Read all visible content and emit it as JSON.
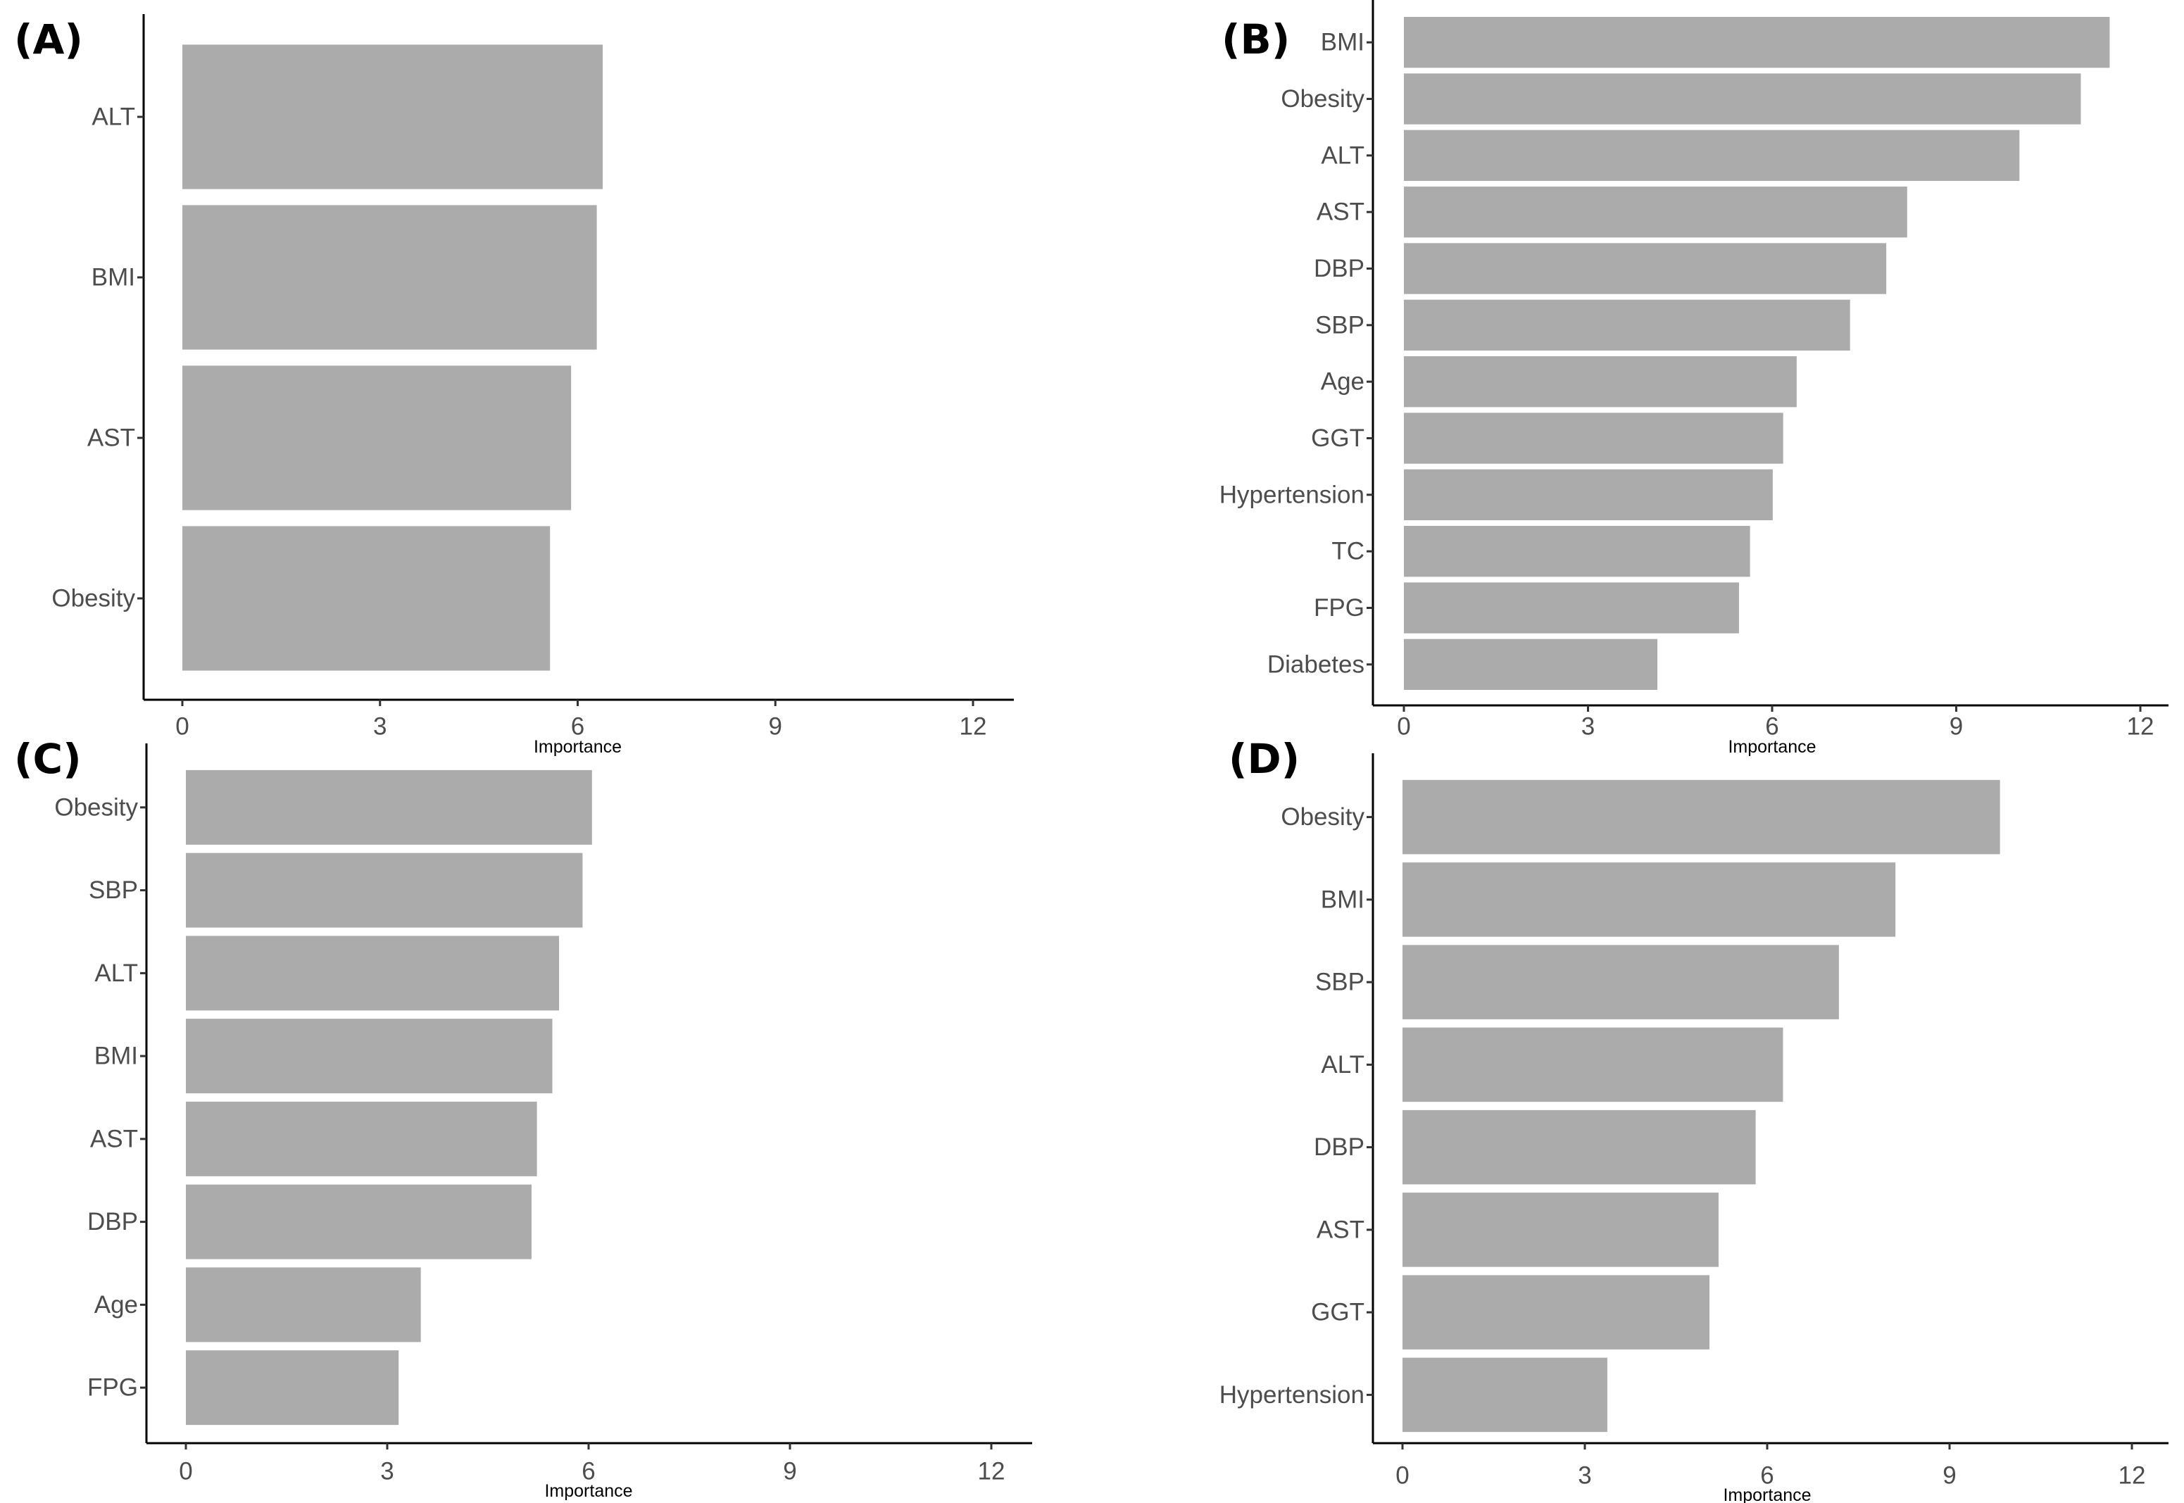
{
  "colors": {
    "bar": "#ababab",
    "axis": "#000000",
    "tick_text": "#4d4d4d"
  },
  "chart_data": [
    {
      "type": "bar",
      "orientation": "horizontal",
      "panel": "(A)",
      "title": "",
      "xlabel": "Importance",
      "ylabel": "",
      "xlim": [
        0,
        12
      ],
      "xticks": [
        "0",
        "3",
        "6",
        "9",
        "12"
      ],
      "grid": false,
      "categories": [
        "ALT",
        "BMI",
        "AST",
        "Obesity"
      ],
      "values": [
        6.38,
        6.29,
        5.9,
        5.58
      ]
    },
    {
      "type": "bar",
      "orientation": "horizontal",
      "panel": "(B)",
      "title": "",
      "xlabel": "Importance",
      "ylabel": "",
      "xlim": [
        0,
        12
      ],
      "xticks": [
        "0",
        "3",
        "6",
        "9",
        "12"
      ],
      "grid": false,
      "categories": [
        "BMI",
        "Obesity",
        "ALT",
        "AST",
        "DBP",
        "SBP",
        "Age",
        "GGT",
        "Hypertension",
        "TC",
        "FPG",
        "Diabetes"
      ],
      "values": [
        11.5,
        11.03,
        10.03,
        8.2,
        7.86,
        7.27,
        6.4,
        6.18,
        6.01,
        5.64,
        5.46,
        4.13
      ]
    },
    {
      "type": "bar",
      "orientation": "horizontal",
      "panel": "(C)",
      "title": "",
      "xlabel": "Importance",
      "ylabel": "",
      "xlim": [
        0,
        12
      ],
      "xticks": [
        "0",
        "3",
        "6",
        "9",
        "12"
      ],
      "grid": false,
      "categories": [
        "Obesity",
        "SBP",
        "ALT",
        "BMI",
        "AST",
        "DBP",
        "Age",
        "FPG"
      ],
      "values": [
        6.05,
        5.91,
        5.56,
        5.46,
        5.23,
        5.15,
        3.5,
        3.17
      ]
    },
    {
      "type": "bar",
      "orientation": "horizontal",
      "panel": "(D)",
      "title": "",
      "xlabel": "Importance",
      "ylabel": "",
      "xlim": [
        0,
        12
      ],
      "xticks": [
        "0",
        "3",
        "6",
        "9",
        "12"
      ],
      "grid": false,
      "categories": [
        "Obesity",
        "BMI",
        "SBP",
        "ALT",
        "DBP",
        "AST",
        "GGT",
        "Hypertension"
      ],
      "values": [
        9.83,
        8.11,
        7.18,
        6.26,
        5.81,
        5.2,
        5.05,
        3.37
      ]
    }
  ]
}
